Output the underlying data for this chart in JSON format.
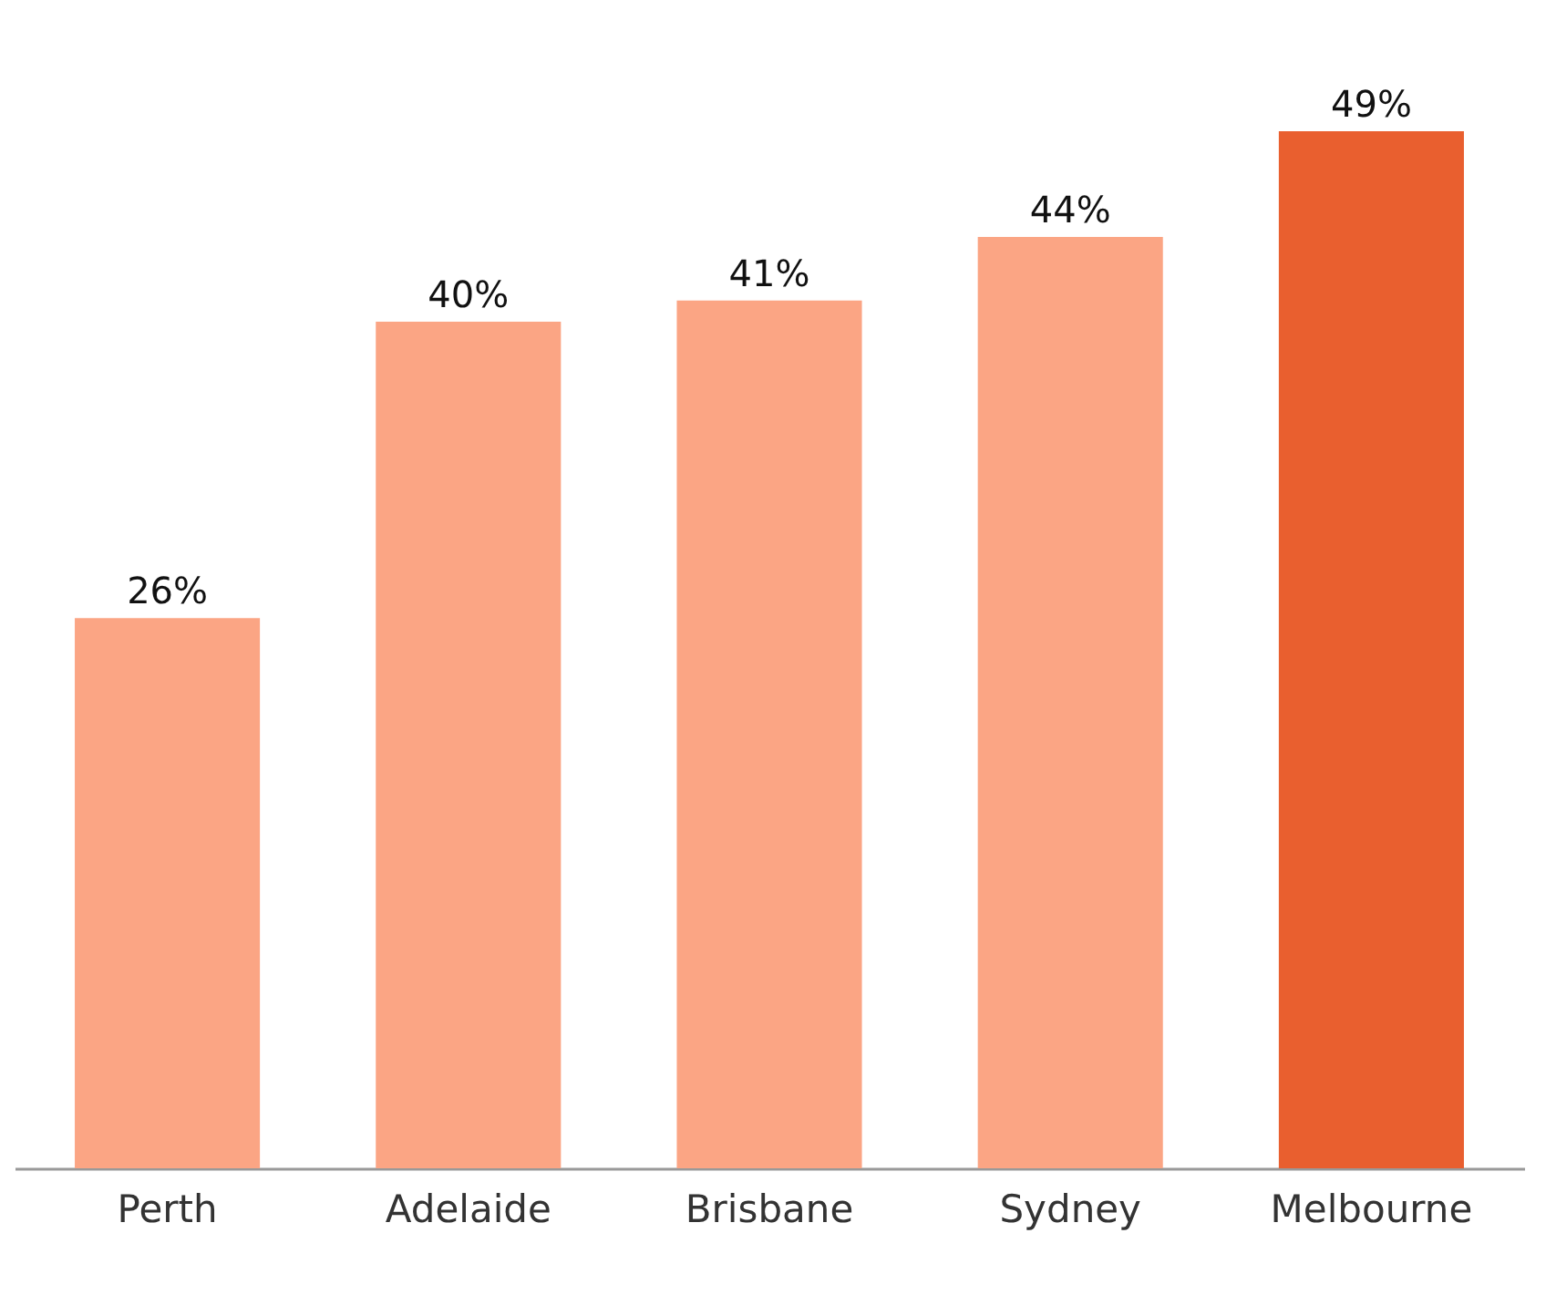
{
  "chart_data": {
    "type": "bar",
    "categories": [
      "Perth",
      "Adelaide",
      "Brisbane",
      "Sydney",
      "Melbourne"
    ],
    "values": [
      26,
      40,
      41,
      44,
      49
    ],
    "value_labels": [
      "26%",
      "40%",
      "41%",
      "44%",
      "49%"
    ],
    "colors": [
      "#fba584",
      "#fba584",
      "#fba584",
      "#fba584",
      "#e95f2f"
    ]
  }
}
